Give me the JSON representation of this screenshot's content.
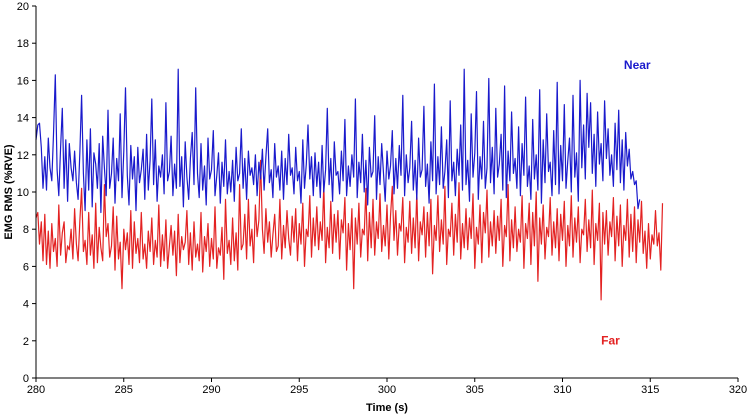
{
  "chart_data": {
    "type": "line",
    "xlabel": "Time (s)",
    "ylabel": "EMG RMS (%RVE)",
    "xlim": [
      280,
      320
    ],
    "ylim": [
      0,
      20
    ],
    "xticks": [
      280,
      285,
      290,
      295,
      300,
      305,
      310,
      315,
      320
    ],
    "yticks": [
      0,
      2,
      4,
      6,
      8,
      10,
      12,
      14,
      16,
      18,
      20
    ],
    "grid": false,
    "series": [
      {
        "name": "Near",
        "color": "#1a1acc",
        "label_at": [
          313.5,
          16.6
        ],
        "x_start": 280,
        "x_step": 0.1,
        "values": [
          12.8,
          13.6,
          13.7,
          12.4,
          10.2,
          11.9,
          10.1,
          12.9,
          11.3,
          10.6,
          13.1,
          16.3,
          11.2,
          9.8,
          12.4,
          14.5,
          10.2,
          12.8,
          9.5,
          12.6,
          11.3,
          10.6,
          12.2,
          10.5,
          9.6,
          12.2,
          15.2,
          11.0,
          9.0,
          12.8,
          10.1,
          13.4,
          9.2,
          12.1,
          11.5,
          10.2,
          12.6,
          8.9,
          13.0,
          11.3,
          9.8,
          14.4,
          10.2,
          11.0,
          12.9,
          9.4,
          11.8,
          10.6,
          14.2,
          9.7,
          12.2,
          15.6,
          10.9,
          9.3,
          12.5,
          10.7,
          11.9,
          9.0,
          12.4,
          10.5,
          11.2,
          12.3,
          9.6,
          13.1,
          10.1,
          11.7,
          15.0,
          10.4,
          12.8,
          9.5,
          11.4,
          10.8,
          12.0,
          9.9,
          14.8,
          10.6,
          11.1,
          13.0,
          9.8,
          11.5,
          10.2,
          16.6,
          10.3,
          11.9,
          9.2,
          12.7,
          10.8,
          9.6,
          11.8,
          13.2,
          10.4,
          15.6,
          11.0,
          9.7,
          12.6,
          10.1,
          11.4,
          9.3,
          12.9,
          10.7,
          11.2,
          13.3,
          9.8,
          10.9,
          12.1,
          9.4,
          11.6,
          10.3,
          12.8,
          9.9,
          11.1,
          10.0,
          11.7,
          9.5,
          12.4,
          10.6,
          11.0,
          13.4,
          10.2,
          11.8,
          9.6,
          12.2,
          10.9,
          11.3,
          10.4,
          12.0,
          9.8,
          11.6,
          10.7,
          12.3,
          10.1,
          11.9,
          13.4,
          10.5,
          11.2,
          9.7,
          12.6,
          10.8,
          11.4,
          10.1,
          12.2,
          9.6,
          11.8,
          10.4,
          13.1,
          10.9,
          11.3,
          9.9,
          12.4,
          10.6,
          11.1,
          9.4,
          12.8,
          10.2,
          11.5,
          13.6,
          10.7,
          11.9,
          9.8,
          12.1,
          10.3,
          11.6,
          9.7,
          12.5,
          10.0,
          11.2,
          14.5,
          10.4,
          11.8,
          9.5,
          12.7,
          10.9,
          11.1,
          9.9,
          12.2,
          10.6,
          13.9,
          9.8,
          11.4,
          10.3,
          12.0,
          10.8,
          15.0,
          9.7,
          11.6,
          10.5,
          13.1,
          10.0,
          11.7,
          9.3,
          12.4,
          10.8,
          11.1,
          14.1,
          9.6,
          11.9,
          10.4,
          12.6,
          11.0,
          9.5,
          12.2,
          10.7,
          11.4,
          13.3,
          9.9,
          11.8,
          10.2,
          12.5,
          10.9,
          15.2,
          9.8,
          12.0,
          10.5,
          11.3,
          13.8,
          10.1,
          11.7,
          9.6,
          12.9,
          10.8,
          11.2,
          14.6,
          10.3,
          11.5,
          9.4,
          12.7,
          10.6,
          15.8,
          9.9,
          11.9,
          10.4,
          13.5,
          10.2,
          11.1,
          12.8,
          9.7,
          14.9,
          10.6,
          11.6,
          9.8,
          12.3,
          10.9,
          13.6,
          10.1,
          16.6,
          10.4,
          11.7,
          9.5,
          14.2,
          10.8,
          12.1,
          15.4,
          9.6,
          11.9,
          10.7,
          13.8,
          10.2,
          11.3,
          16.1,
          10.5,
          12.4,
          9.9,
          14.5,
          10.8,
          11.5,
          13.1,
          10.1,
          15.7,
          9.7,
          12.2,
          10.6,
          14.3,
          11.0,
          11.8,
          10.2,
          13.5,
          9.8,
          12.6,
          10.9,
          15.1,
          10.3,
          11.4,
          9.6,
          13.9,
          10.7,
          12.0,
          10.1,
          15.5,
          9.4,
          12.8,
          10.5,
          14.2,
          11.1,
          11.6,
          9.8,
          13.3,
          10.4,
          15.9,
          9.9,
          12.5,
          10.6,
          14.7,
          10.2,
          11.7,
          12.9,
          10.0,
          15.2,
          10.8,
          12.1,
          9.5,
          16.0,
          11.3,
          13.6,
          10.7,
          15.3,
          12.4,
          14.8,
          11.0,
          13.1,
          10.3,
          14.3,
          11.5,
          12.6,
          10.6,
          14.9,
          11.8,
          13.4,
          10.9,
          12.0,
          10.3,
          13.7,
          11.2,
          14.4,
          10.5,
          12.8,
          10.1,
          13.2,
          11.4,
          12.3,
          10.7,
          11.1,
          10.4,
          10.6,
          9.1,
          9.6
        ]
      },
      {
        "name": "Far",
        "color": "#e32222",
        "label_at": [
          312.2,
          6.1
        ],
        "x_start": 280,
        "x_step": 0.1,
        "values": [
          8.6,
          8.9,
          7.2,
          8.4,
          6.3,
          8.8,
          6.1,
          7.9,
          5.9,
          8.3,
          6.8,
          7.5,
          6.0,
          9.3,
          6.6,
          7.8,
          8.4,
          6.2,
          7.1,
          6.9,
          8.0,
          6.4,
          9.1,
          7.2,
          6.3,
          8.5,
          10.2,
          6.8,
          7.4,
          6.1,
          8.9,
          6.6,
          7.7,
          5.9,
          9.4,
          6.2,
          8.1,
          7.0,
          6.3,
          10.4,
          7.6,
          8.3,
          6.5,
          7.1,
          9.2,
          5.8,
          8.7,
          6.4,
          7.3,
          4.8,
          8.0,
          6.9,
          7.8,
          6.1,
          9.0,
          5.9,
          8.4,
          6.7,
          7.5,
          6.2,
          8.9,
          6.4,
          7.2,
          5.9,
          7.9,
          6.8,
          8.6,
          6.1,
          7.4,
          6.5,
          9.3,
          6.0,
          7.7,
          6.3,
          8.5,
          5.9,
          7.1,
          8.2,
          6.6,
          7.9,
          5.5,
          8.8,
          6.2,
          7.6,
          6.9,
          7.3,
          9.0,
          6.1,
          7.8,
          5.8,
          8.4,
          6.5,
          7.2,
          6.3,
          8.9,
          5.7,
          7.6,
          6.8,
          8.3,
          6.0,
          7.5,
          6.4,
          9.2,
          5.9,
          7.0,
          6.6,
          8.1,
          5.3,
          9.6,
          6.7,
          7.4,
          6.1,
          8.6,
          6.3,
          7.8,
          5.8,
          10.4,
          6.9,
          7.2,
          8.8,
          6.4,
          9.6,
          7.1,
          8.0,
          6.2,
          9.3,
          7.6,
          8.5,
          11.7,
          8.0,
          6.7,
          9.1,
          7.3,
          8.4,
          6.5,
          7.7,
          8.8,
          6.8,
          7.1,
          9.6,
          6.4,
          8.2,
          7.0,
          9.0,
          7.5,
          6.6,
          8.7,
          7.3,
          9.1,
          6.3,
          8.3,
          7.2,
          9.4,
          6.0,
          8.0,
          7.6,
          9.8,
          6.5,
          8.6,
          7.1,
          9.2,
          6.9,
          8.4,
          7.4,
          10.4,
          6.2,
          8.1,
          7.0,
          9.5,
          6.7,
          8.8,
          7.3,
          9.0,
          6.4,
          8.5,
          7.8,
          9.7,
          5.8,
          8.3,
          6.9,
          9.1,
          4.8,
          8.6,
          7.2,
          9.4,
          6.5,
          8.0,
          7.7,
          10.2,
          6.3,
          8.9,
          7.0,
          9.6,
          6.6,
          8.4,
          7.5,
          9.9,
          6.8,
          8.2,
          7.1,
          9.3,
          6.4,
          8.7,
          10.3,
          7.4,
          9.0,
          6.6,
          8.3,
          7.9,
          9.7,
          6.2,
          8.1,
          7.3,
          9.5,
          6.7,
          8.6,
          7.0,
          10.0,
          6.3,
          8.4,
          7.7,
          9.2,
          6.5,
          8.9,
          7.1,
          9.6,
          5.6,
          8.2,
          7.4,
          9.8,
          6.8,
          8.5,
          7.2,
          10.3,
          6.1,
          8.0,
          7.6,
          9.4,
          6.6,
          8.8,
          7.3,
          10.5,
          6.4,
          8.3,
          7.0,
          9.1,
          6.9,
          8.6,
          7.5,
          9.9,
          5.9,
          8.1,
          7.2,
          9.3,
          6.2,
          8.9,
          7.8,
          10.1,
          6.5,
          8.4,
          7.1,
          9.0,
          6.7,
          8.7,
          7.4,
          9.6,
          6.0,
          8.2,
          7.6,
          10.4,
          6.3,
          8.5,
          7.0,
          9.2,
          6.8,
          8.0,
          7.3,
          9.8,
          5.9,
          8.3,
          7.5,
          9.4,
          6.1,
          8.9,
          7.1,
          10.0,
          5.2,
          8.6,
          7.2,
          9.3,
          6.4,
          8.1,
          7.6,
          9.7,
          6.6,
          8.4,
          7.0,
          9.1,
          6.3,
          8.8,
          7.4,
          9.5,
          6.0,
          8.2,
          7.1,
          9.8,
          6.5,
          8.6,
          7.3,
          9.2,
          6.2,
          8.0,
          7.7,
          9.6,
          6.8,
          8.5,
          7.0,
          10.1,
          6.1,
          8.3,
          7.4,
          9.4,
          4.2,
          8.9,
          7.2,
          9.0,
          6.6,
          8.4,
          7.6,
          9.7,
          6.3,
          8.7,
          7.1,
          9.3,
          6.0,
          8.2,
          7.4,
          9.6,
          6.5,
          8.8,
          6.8,
          9.2,
          6.2,
          8.5,
          7.3,
          9.5,
          6.7,
          7.9,
          5.9,
          8.3,
          6.4,
          7.7,
          7.2,
          9.0,
          7.1,
          7.8,
          5.8,
          9.4
        ]
      }
    ]
  }
}
